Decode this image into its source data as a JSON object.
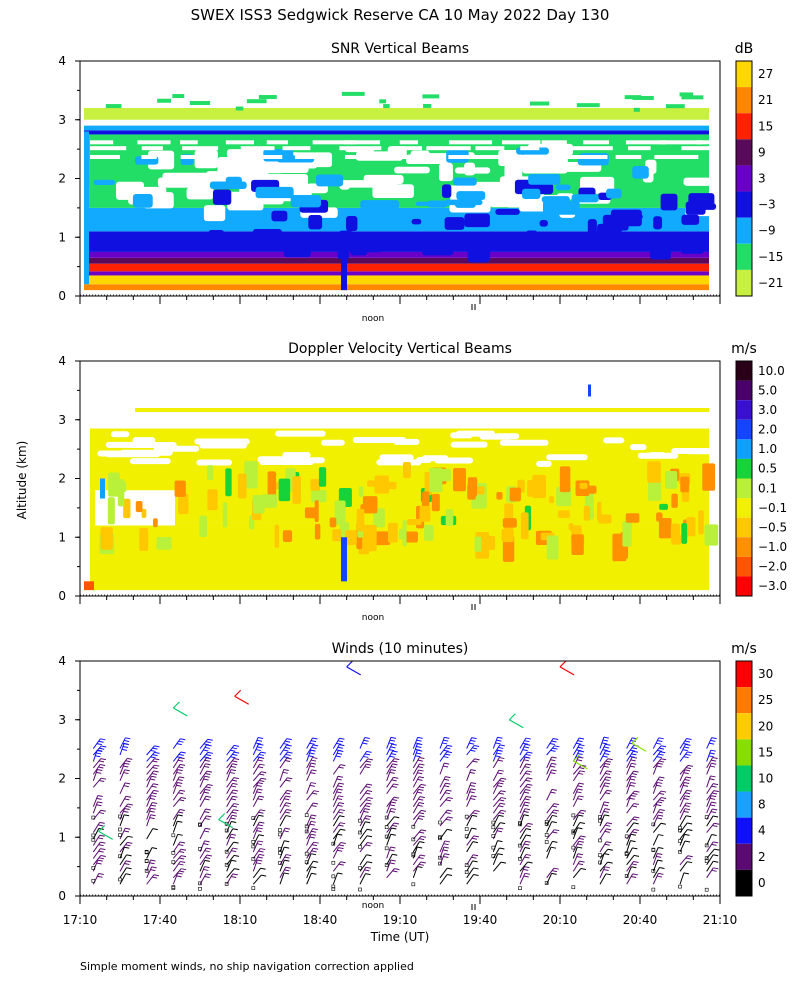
{
  "figure": {
    "title": "SWEX ISS3 Sedgwick Reserve CA  10 May 2022 Day 130",
    "ylabel": "Altitude (km)",
    "xlabel": "Time (UT)",
    "noon_label": "noon",
    "footnote": "Simple moment winds, no ship navigation correction applied"
  },
  "chart_data": [
    {
      "type": "heatmap",
      "title": "SNR Vertical Beams",
      "ylabel": "Altitude (km)",
      "yticks": [
        "0",
        "1",
        "2",
        "3",
        "4"
      ],
      "ylim": [
        0,
        4
      ],
      "xlim_minutes": [
        1030,
        1270
      ],
      "colorbar_unit": "dB",
      "colorbar_labels": [
        "27",
        "21",
        "15",
        "9",
        "3",
        "−3",
        "−9",
        "−15",
        "−21"
      ],
      "colorbar_colors": [
        "#ffd700",
        "#ff8800",
        "#ff2200",
        "#5a0a5a",
        "#6a00c8",
        "#1010e0",
        "#11aaff",
        "#22dd66",
        "#c8f040"
      ]
    },
    {
      "type": "heatmap",
      "title": "Doppler Velocity Vertical Beams",
      "ylabel": "Altitude (km)",
      "yticks": [
        "0",
        "1",
        "2",
        "3",
        "4"
      ],
      "ylim": [
        0,
        4
      ],
      "xlim_minutes": [
        1030,
        1270
      ],
      "colorbar_unit": "m/s",
      "colorbar_labels": [
        "10.0",
        "5.0",
        "3.0",
        "2.0",
        "1.0",
        "0.5",
        "0.1",
        "−0.1",
        "−0.5",
        "−1.0",
        "−2.0",
        "−3.0"
      ],
      "colorbar_colors": [
        "#2a0018",
        "#4a006a",
        "#3a10d0",
        "#1444ff",
        "#10a0ff",
        "#16d33a",
        "#b8f03a",
        "#f0f000",
        "#ffc800",
        "#ff9000",
        "#ff5500",
        "#ff0000"
      ]
    },
    {
      "type": "scatter",
      "title": "Winds (10 minutes)",
      "ylabel": "Altitude (km)",
      "xlabel": "Time (UT)",
      "yticks": [
        "0",
        "1",
        "2",
        "3",
        "4"
      ],
      "ylim": [
        0,
        4
      ],
      "xlim_minutes": [
        1030,
        1270
      ],
      "xticks": [
        "17:10",
        "17:40",
        "18:10",
        "18:40",
        "19:10",
        "19:40",
        "20:10",
        "20:40",
        "21:10"
      ],
      "colorbar_unit": "m/s",
      "colorbar_labels": [
        "30",
        "25",
        "20",
        "15",
        "10",
        "8",
        "4",
        "2",
        "0"
      ],
      "colorbar_colors": [
        "#ff0000",
        "#ff7a00",
        "#ffcc00",
        "#88dd00",
        "#00cc66",
        "#1aa0ff",
        "#1010ff",
        "#5a0a70",
        "#000000"
      ]
    }
  ]
}
